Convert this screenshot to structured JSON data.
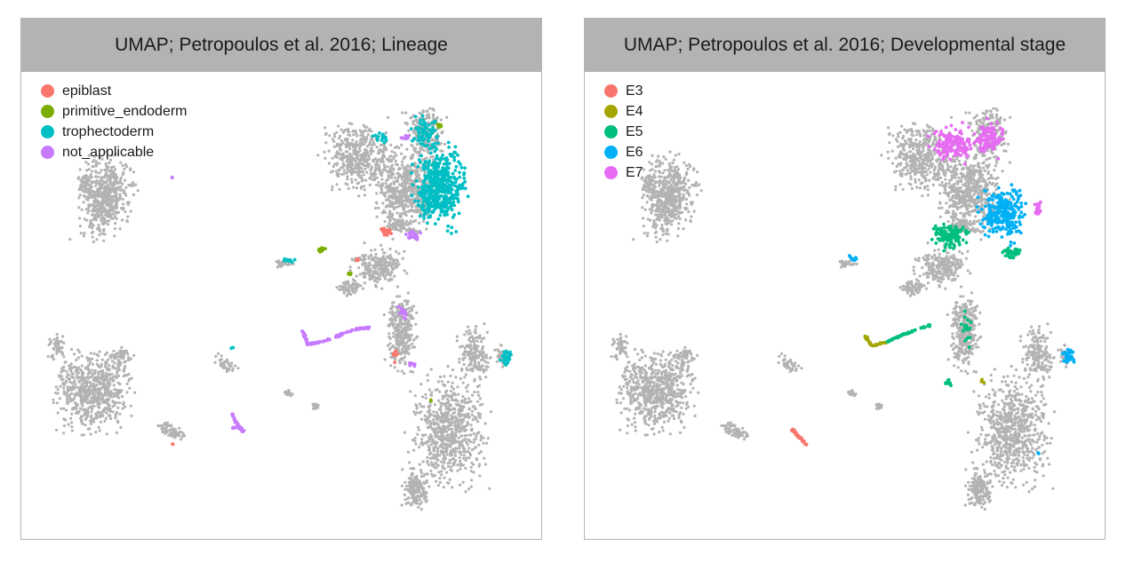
{
  "chart_data": [
    {
      "type": "scatter",
      "title": "UMAP; Petropoulos et al. 2016; Lineage",
      "xlabel": "",
      "ylabel": "",
      "background_color": "#b3b3b3",
      "legend_position": "top-left",
      "grid": false,
      "series": [
        {
          "name": "epiblast",
          "color": "#f8766d"
        },
        {
          "name": "primitive_endoderm",
          "color": "#7cae00"
        },
        {
          "name": "trophectoderm",
          "color": "#00bfc4"
        },
        {
          "name": "not_applicable",
          "color": "#c77cff"
        }
      ]
    },
    {
      "type": "scatter",
      "title": "UMAP; Petropoulos et al. 2016; Developmental stage",
      "xlabel": "",
      "ylabel": "",
      "background_color": "#b3b3b3",
      "legend_position": "top-left",
      "grid": false,
      "series": [
        {
          "name": "E3",
          "color": "#f8766d"
        },
        {
          "name": "E4",
          "color": "#a3a500"
        },
        {
          "name": "E5",
          "color": "#00bf7d"
        },
        {
          "name": "E6",
          "color": "#00b0f6"
        },
        {
          "name": "E7",
          "color": "#e76bf3"
        }
      ]
    }
  ]
}
